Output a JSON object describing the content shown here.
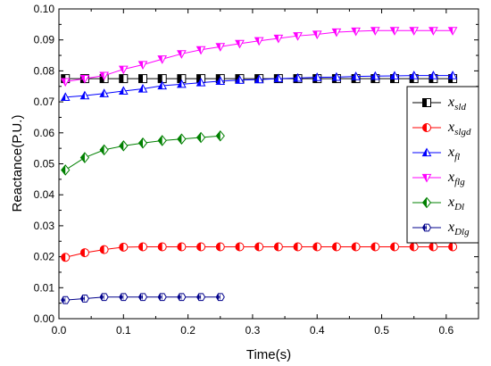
{
  "chart_data": {
    "type": "line",
    "xlabel": "Time(s)",
    "ylabel": "Reactance(P.U.)",
    "xlim": [
      0.0,
      0.65
    ],
    "ylim": [
      0.0,
      0.1
    ],
    "x_ticks": [
      "0.0",
      "0.1",
      "0.2",
      "0.3",
      "0.4",
      "0.5",
      "0.6"
    ],
    "y_ticks": [
      "0.00",
      "0.01",
      "0.02",
      "0.03",
      "0.04",
      "0.05",
      "0.06",
      "0.07",
      "0.08",
      "0.09",
      "0.10"
    ],
    "legend_placement": "right",
    "grid": false,
    "series": [
      {
        "name": "sld",
        "color": "#000000",
        "marker": "square",
        "x": [
          0.01,
          0.04,
          0.07,
          0.1,
          0.13,
          0.16,
          0.19,
          0.22,
          0.25,
          0.28,
          0.31,
          0.34,
          0.37,
          0.4,
          0.43,
          0.46,
          0.49,
          0.52,
          0.55,
          0.58,
          0.61
        ],
        "y": [
          0.0775,
          0.0775,
          0.0775,
          0.0775,
          0.0775,
          0.0775,
          0.0775,
          0.0775,
          0.0775,
          0.0775,
          0.0775,
          0.0775,
          0.0775,
          0.0775,
          0.0775,
          0.0775,
          0.0775,
          0.0775,
          0.0775,
          0.0775,
          0.0775
        ]
      },
      {
        "name": "slgd",
        "color": "#ff0000",
        "marker": "circle",
        "x": [
          0.01,
          0.04,
          0.07,
          0.1,
          0.13,
          0.16,
          0.19,
          0.22,
          0.25,
          0.28,
          0.31,
          0.34,
          0.37,
          0.4,
          0.43,
          0.46,
          0.49,
          0.52,
          0.55,
          0.58,
          0.61
        ],
        "y": [
          0.0198,
          0.0213,
          0.0223,
          0.0231,
          0.0232,
          0.0232,
          0.0232,
          0.0232,
          0.0232,
          0.0232,
          0.0232,
          0.0232,
          0.0232,
          0.0232,
          0.0232,
          0.0232,
          0.0232,
          0.0232,
          0.0232,
          0.0232,
          0.0232
        ]
      },
      {
        "name": "fl",
        "color": "#0000ff",
        "marker": "triangle-up",
        "x": [
          0.01,
          0.04,
          0.07,
          0.1,
          0.13,
          0.16,
          0.19,
          0.22,
          0.25,
          0.28,
          0.31,
          0.34,
          0.37,
          0.4,
          0.43,
          0.46,
          0.49,
          0.52,
          0.55,
          0.58,
          0.61
        ],
        "y": [
          0.0715,
          0.072,
          0.0727,
          0.0735,
          0.0742,
          0.0752,
          0.0757,
          0.0762,
          0.0767,
          0.077,
          0.0772,
          0.0775,
          0.0777,
          0.0779,
          0.078,
          0.0782,
          0.0783,
          0.0784,
          0.0785,
          0.0785,
          0.0785
        ]
      },
      {
        "name": "flg",
        "color": "#ff00ff",
        "marker": "triangle-down",
        "x": [
          0.01,
          0.04,
          0.07,
          0.1,
          0.13,
          0.16,
          0.19,
          0.22,
          0.25,
          0.28,
          0.31,
          0.34,
          0.37,
          0.4,
          0.43,
          0.46,
          0.49,
          0.52,
          0.55,
          0.58,
          0.61
        ],
        "y": [
          0.0765,
          0.0775,
          0.0785,
          0.0805,
          0.082,
          0.0838,
          0.0855,
          0.0868,
          0.0878,
          0.0888,
          0.0897,
          0.0905,
          0.0913,
          0.0918,
          0.0925,
          0.0928,
          0.093,
          0.093,
          0.093,
          0.093,
          0.093
        ]
      },
      {
        "name": "Dl",
        "color": "#008000",
        "marker": "diamond",
        "x": [
          0.01,
          0.04,
          0.07,
          0.1,
          0.13,
          0.16,
          0.19,
          0.22,
          0.25
        ],
        "y": [
          0.048,
          0.052,
          0.0545,
          0.0558,
          0.0567,
          0.0575,
          0.058,
          0.0585,
          0.059
        ]
      },
      {
        "name": "Dlg",
        "color": "#00008b",
        "marker": "hexagon",
        "x": [
          0.01,
          0.04,
          0.07,
          0.1,
          0.13,
          0.16,
          0.19,
          0.22,
          0.25
        ],
        "y": [
          0.006,
          0.0065,
          0.007,
          0.007,
          0.007,
          0.007,
          0.007,
          0.007,
          0.007
        ]
      }
    ]
  }
}
